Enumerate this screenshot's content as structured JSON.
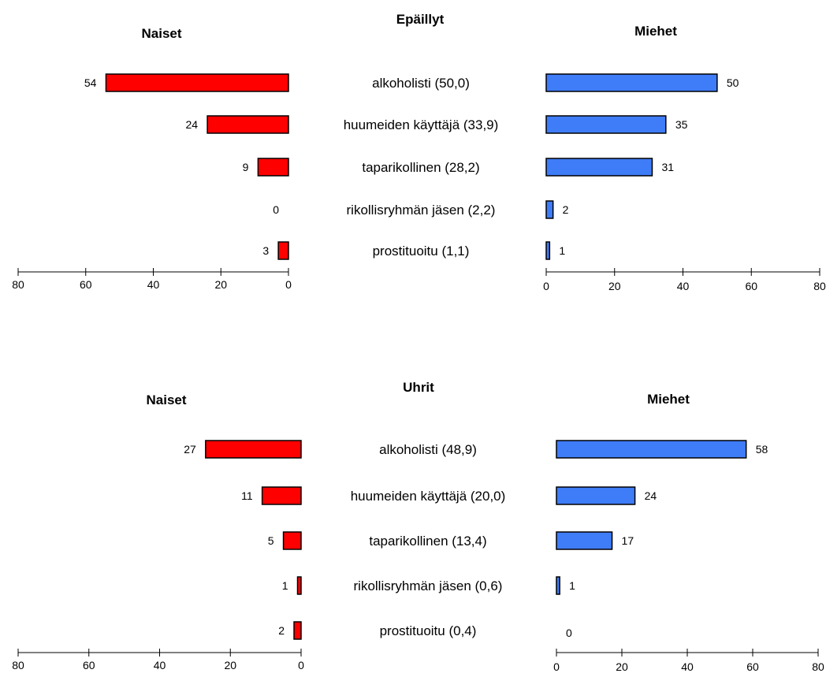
{
  "chart_data": [
    {
      "type": "bar",
      "title": "Epäillyt",
      "categories": [
        "alkoholisti (50,0)",
        "huumeiden käyttäjä (33,9)",
        "taparikollinen (28,2)",
        "rikollisryhmän jäsen (2,2)",
        "prostituoitu (1,1)"
      ],
      "women_label": "Naiset",
      "men_label": "Miehet",
      "women_values": [
        54,
        24,
        9,
        0,
        3
      ],
      "men_values": [
        50,
        35,
        31,
        2,
        1
      ],
      "axis_ticks": [
        0,
        20,
        40,
        60,
        80
      ],
      "xlim": [
        0,
        80
      ],
      "women_color": "#ff0000",
      "men_color": "#3f7cf7"
    },
    {
      "type": "bar",
      "title": "Uhrit",
      "categories": [
        "alkoholisti (48,9)",
        "huumeiden käyttäjä (20,0)",
        "taparikollinen (13,4)",
        "rikollisryhmän jäsen (0,6)",
        "prostituoitu (0,4)"
      ],
      "women_label": "Naiset",
      "men_label": "Miehet",
      "women_values": [
        27,
        11,
        5,
        1,
        2
      ],
      "men_values": [
        58,
        24,
        17,
        1,
        0
      ],
      "axis_ticks": [
        0,
        20,
        40,
        60,
        80
      ],
      "xlim": [
        0,
        80
      ],
      "women_color": "#ff0000",
      "men_color": "#3f7cf7"
    }
  ]
}
